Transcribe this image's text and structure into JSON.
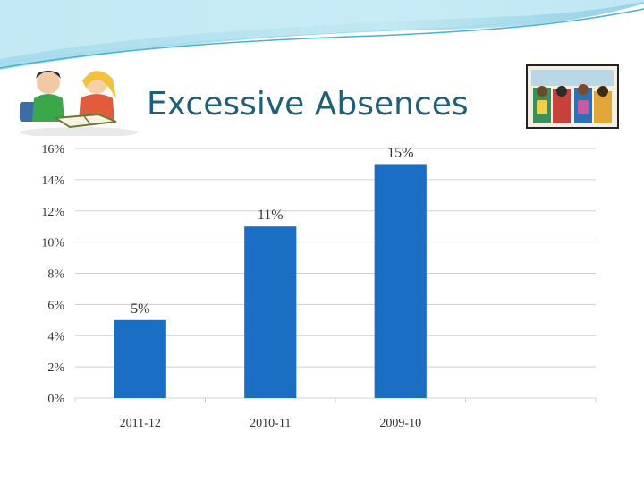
{
  "slide": {
    "title": "Excessive Absences",
    "images": [
      {
        "name": "children-reading-clipart"
      },
      {
        "name": "students-with-backpacks-clipart"
      }
    ]
  },
  "colors": {
    "bar": "#1a6fc4",
    "title": "#1f5f7a",
    "gridline": "#d0d0d0",
    "header_wave": "#5fbfd9",
    "header_wave_light": "#c9ecf6"
  },
  "chart_data": {
    "type": "bar",
    "categories": [
      "2011-12",
      "2010-11",
      "2009-10"
    ],
    "values": [
      5,
      11,
      15
    ],
    "data_labels": [
      "5%",
      "11%",
      "15%"
    ],
    "y_ticks": [
      "0%",
      "2%",
      "4%",
      "6%",
      "8%",
      "10%",
      "12%",
      "14%",
      "16%"
    ],
    "ylim": [
      0,
      16
    ],
    "slots": 4,
    "title": "",
    "xlabel": "",
    "ylabel": "",
    "grid": true,
    "legend": "none"
  }
}
